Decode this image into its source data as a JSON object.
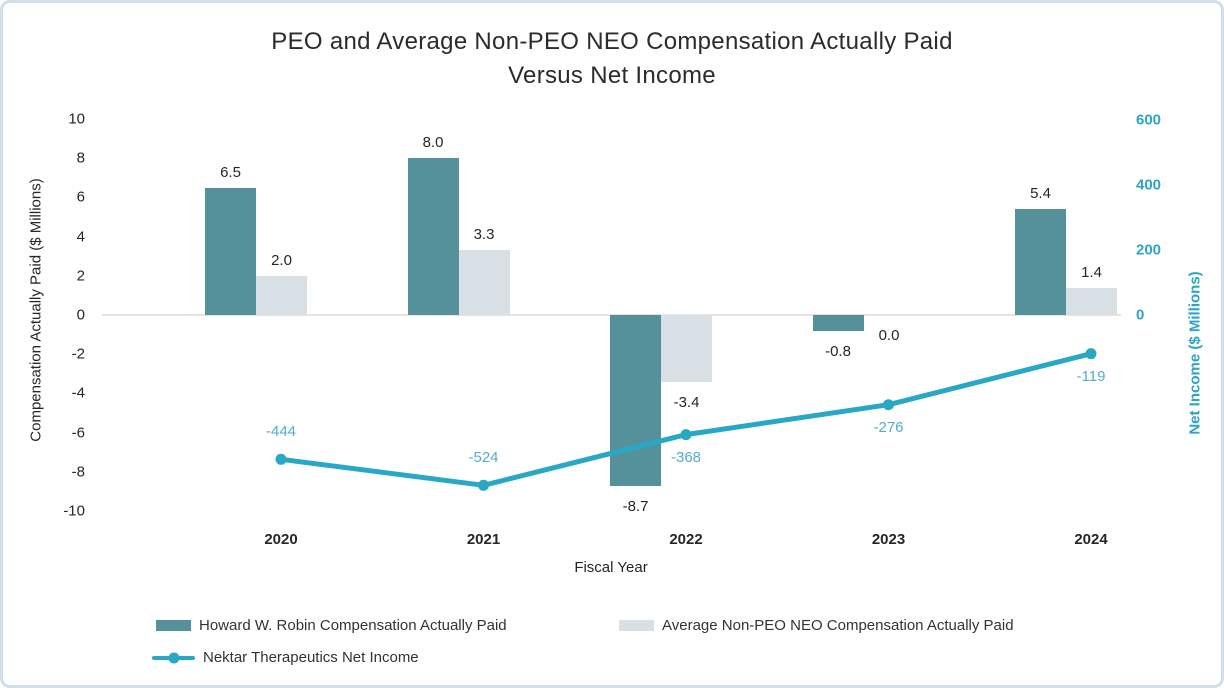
{
  "title": {
    "line1": "PEO and Average Non-PEO NEO Compensation Actually Paid",
    "line2": "Versus Net Income"
  },
  "chart_data": {
    "type": "bar",
    "subtype": "grouped bars with overlay line on secondary axis",
    "categories": [
      "2020",
      "2021",
      "2022",
      "2023",
      "2024"
    ],
    "series": [
      {
        "name": "Howard W. Robin Compensation Actually Paid",
        "type": "bar",
        "axis": "left",
        "color": "#55919b",
        "values": [
          6.5,
          8.0,
          -8.7,
          -0.8,
          5.4
        ],
        "labels": [
          "6.5",
          "8.0",
          "-8.7",
          "-0.8",
          "5.4"
        ]
      },
      {
        "name": "Average Non-PEO NEO Compensation Actually Paid",
        "type": "bar",
        "axis": "left",
        "color": "#d8e0e5",
        "values": [
          2.0,
          3.3,
          -3.4,
          0.0,
          1.4
        ],
        "labels": [
          "2.0",
          "3.3",
          "-3.4",
          "0.0",
          "1.4"
        ]
      },
      {
        "name": "Nektar Therapeutics Net Income",
        "type": "line",
        "axis": "right",
        "color": "#29a8c5",
        "label_color": "#54adca",
        "values": [
          -444,
          -524,
          -368,
          -276,
          -119
        ],
        "labels": [
          "-444",
          "-524",
          "-368",
          "-276",
          "-119"
        ],
        "label_positions": [
          "above",
          "above",
          "below",
          "below",
          "below"
        ]
      }
    ],
    "xlabel": "Fiscal Year",
    "left_axis": {
      "title": "Compensation Actually Paid ($ Millions)",
      "ticks": [
        10,
        8,
        6,
        4,
        2,
        0,
        -2,
        -4,
        -6,
        -8,
        -10
      ],
      "range": [
        -10,
        10
      ],
      "color": "#262626"
    },
    "right_axis": {
      "title": "Net Income ($ Millions)",
      "ticks": [
        600,
        400,
        200,
        0
      ],
      "range": [
        -600,
        600
      ],
      "color": "#2da4c4"
    },
    "grid": "zero-baseline only",
    "legend_position": "bottom-left, two rows"
  },
  "colors": {
    "card_border": "#cfdee8",
    "zero_line": "#e4e4e4",
    "title_text": "#2b2b2b",
    "label_text": "#262626"
  }
}
